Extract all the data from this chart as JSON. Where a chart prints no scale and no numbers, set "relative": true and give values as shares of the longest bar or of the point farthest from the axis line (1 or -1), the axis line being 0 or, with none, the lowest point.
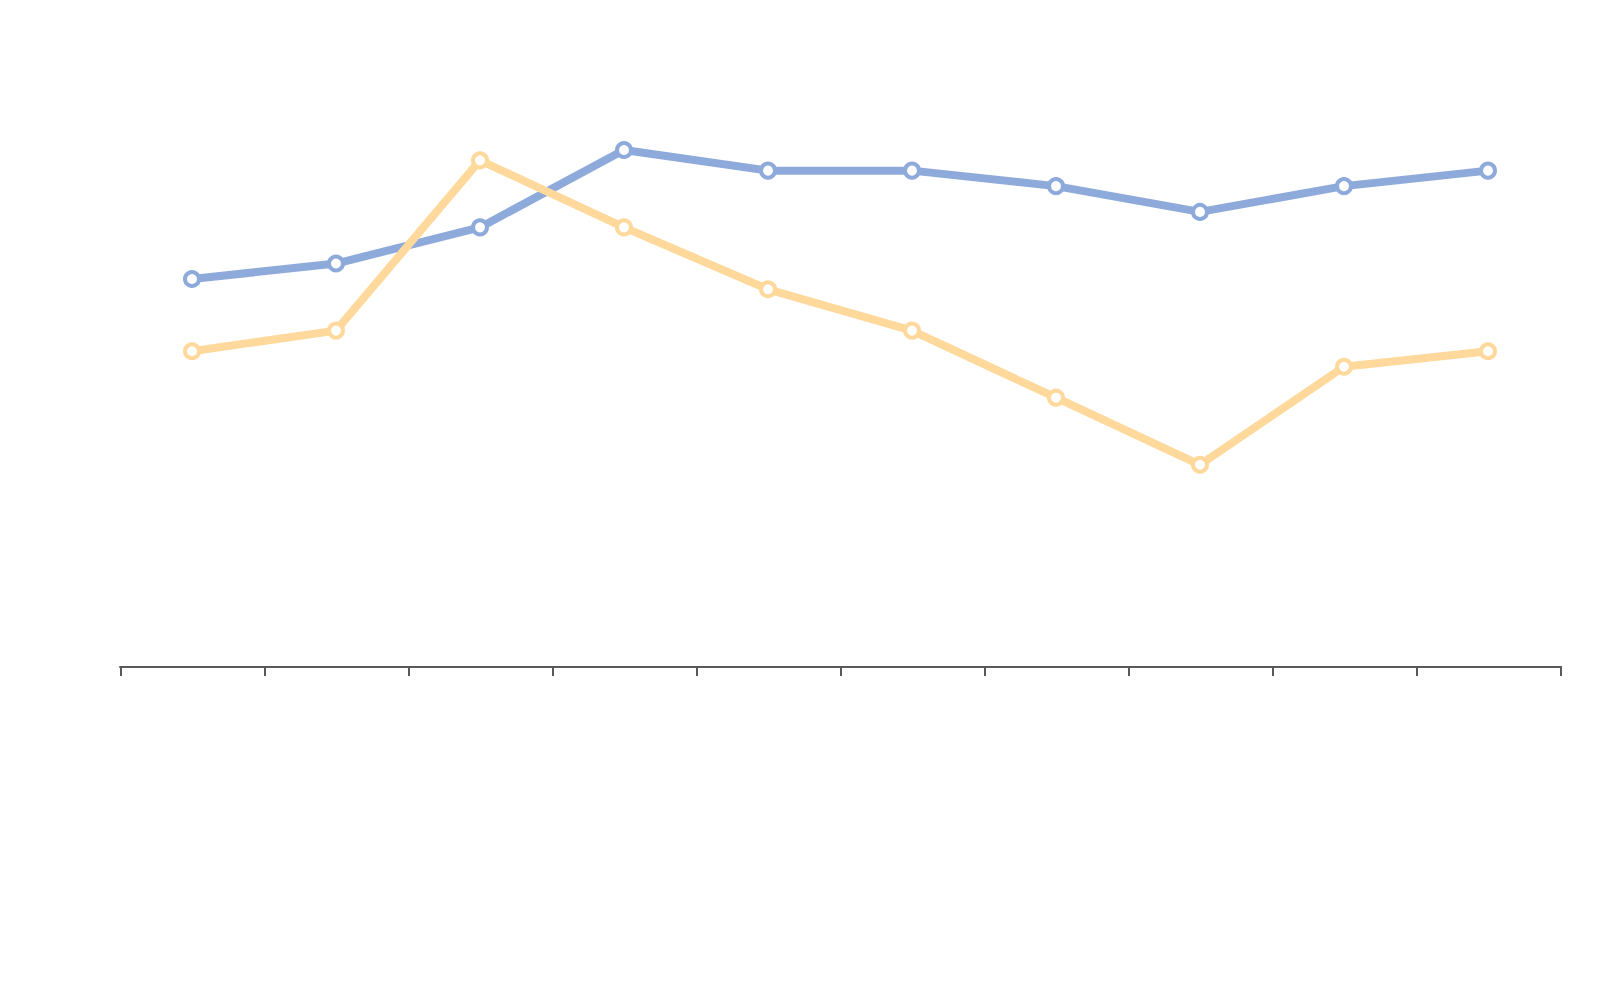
{
  "chart_data": {
    "type": "line",
    "relative": true,
    "marker": "circle",
    "line_style": "solid",
    "categories": [
      null,
      null,
      null,
      null,
      null,
      null,
      null,
      null,
      null,
      null
    ],
    "series": [
      {
        "color": "#8eaadb",
        "values": [
          0.75,
          0.78,
          0.85,
          1,
          0.96,
          0.96,
          0.93,
          0.88,
          0.93,
          0.96
        ]
      },
      {
        "color": "#ffd89b",
        "values": [
          0.61,
          0.65,
          0.98,
          0.85,
          0.73,
          0.65,
          0.52,
          0.39,
          0.58,
          0.61
        ]
      }
    ]
  }
}
